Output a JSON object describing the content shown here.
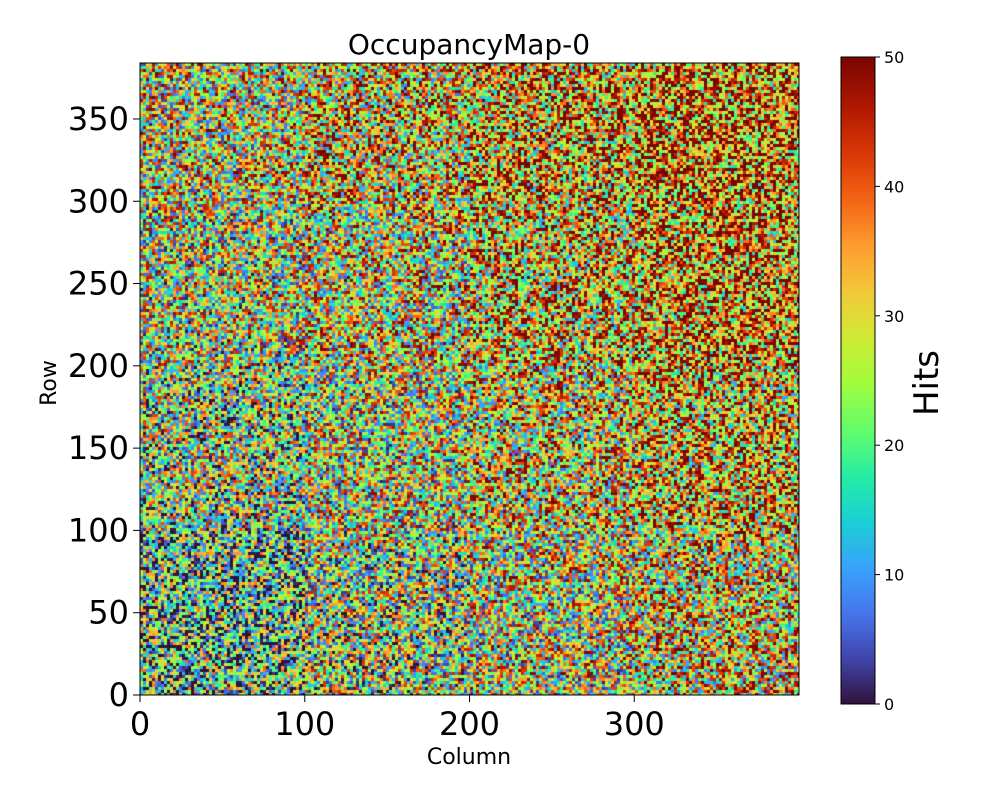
{
  "chart_data": {
    "type": "heatmap",
    "title": "OccupancyMap-0",
    "xlabel": "Column",
    "ylabel": "Row",
    "xlim": [
      0,
      400
    ],
    "ylim": [
      0,
      384
    ],
    "x_ticks": [
      0,
      100,
      200,
      300
    ],
    "y_ticks": [
      0,
      50,
      100,
      150,
      200,
      250,
      300,
      350
    ],
    "grid": false,
    "colormap": "turbo",
    "colorbar": {
      "label": "Hits",
      "range": [
        0,
        50
      ],
      "ticks": [
        0,
        10,
        20,
        30,
        40,
        50
      ],
      "placement": "right"
    },
    "trend": "hit counts increase from the lower-left corner (mostly 0–20) toward the upper-right corner (mostly 30–50); pixel-level values appear random",
    "region_means": [
      {
        "x": [
          0,
          100
        ],
        "y": [
          0,
          100
        ],
        "mean_hits": 15
      },
      {
        "x": [
          100,
          200
        ],
        "y": [
          0,
          100
        ],
        "mean_hits": 21
      },
      {
        "x": [
          200,
          300
        ],
        "y": [
          0,
          100
        ],
        "mean_hits": 26
      },
      {
        "x": [
          300,
          400
        ],
        "y": [
          0,
          100
        ],
        "mean_hits": 30
      },
      {
        "x": [
          0,
          100
        ],
        "y": [
          100,
          200
        ],
        "mean_hits": 20
      },
      {
        "x": [
          100,
          200
        ],
        "y": [
          100,
          200
        ],
        "mean_hits": 25
      },
      {
        "x": [
          200,
          300
        ],
        "y": [
          100,
          200
        ],
        "mean_hits": 30
      },
      {
        "x": [
          300,
          400
        ],
        "y": [
          100,
          200
        ],
        "mean_hits": 34
      },
      {
        "x": [
          0,
          100
        ],
        "y": [
          200,
          300
        ],
        "mean_hits": 24
      },
      {
        "x": [
          100,
          200
        ],
        "y": [
          200,
          300
        ],
        "mean_hits": 28
      },
      {
        "x": [
          200,
          300
        ],
        "y": [
          200,
          300
        ],
        "mean_hits": 33
      },
      {
        "x": [
          300,
          400
        ],
        "y": [
          200,
          300
        ],
        "mean_hits": 37
      },
      {
        "x": [
          0,
          100
        ],
        "y": [
          300,
          384
        ],
        "mean_hits": 27
      },
      {
        "x": [
          100,
          200
        ],
        "y": [
          300,
          384
        ],
        "mean_hits": 31
      },
      {
        "x": [
          200,
          300
        ],
        "y": [
          300,
          384
        ],
        "mean_hits": 35
      },
      {
        "x": [
          300,
          400
        ],
        "y": [
          300,
          384
        ],
        "mean_hits": 39
      }
    ]
  }
}
